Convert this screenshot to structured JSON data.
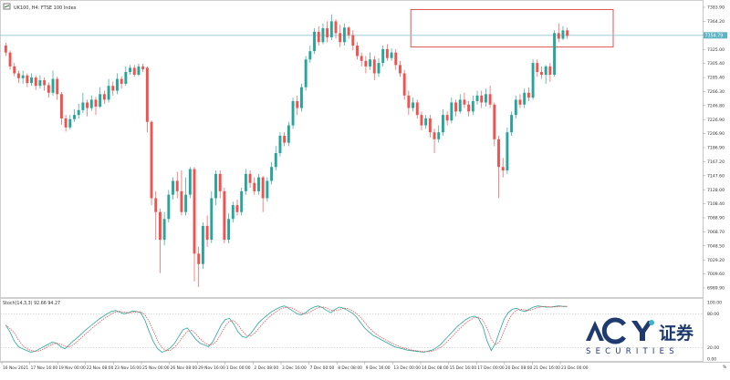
{
  "header": {
    "title": "UK100, H4: FTSE 100 Index",
    "icon": "chart-window-icon"
  },
  "stoch_header": "Stoch(14,3,3) 92.66 94.27",
  "price_badge": "7354.79",
  "chart_data": {
    "type": "candlestick",
    "title": "UK100, H4: FTSE 100 Index",
    "grid": false,
    "ylim": [
      6980,
      7390
    ],
    "price_ticks": [
      "7383.90",
      "7364.20",
      "7344.50",
      "7325.00",
      "7305.40",
      "7285.40",
      "7266.30",
      "7246.80",
      "7226.90",
      "7206.90",
      "7186.90",
      "7167.20",
      "7147.60",
      "7128.00",
      "7108.40",
      "7088.90",
      "7068.70",
      "7048.50",
      "7029.20",
      "7009.60",
      "6989.90"
    ],
    "x_labels": [
      "16 Nov 2021",
      "17 Nov 16:00",
      "19 Nov 00:00",
      "22 Nov 08:00",
      "23 Nov 16:00",
      "25 Nov 00:00",
      "26 Nov 08:00",
      "29 Nov 16:00",
      "1 Dec 00:00",
      "2 Dec 08:00",
      "3 Dec 16:00",
      "7 Dec 00:00",
      "8 Dec 08:00",
      "9 Dec 16:00",
      "13 Dec 00:00",
      "14 Dec 08:00",
      "15 Dec 16:00",
      "17 Dec 00:00",
      "20 Dec 08:00",
      "21 Dec 16:00",
      "23 Dec 00:00"
    ],
    "current_price": 7354.79,
    "resistance_zone": [
      7338,
      7392
    ],
    "candles": [
      {
        "o": 7340,
        "c": 7330,
        "h": 7344,
        "l": 7325
      },
      {
        "o": 7330,
        "c": 7310,
        "h": 7333,
        "l": 7305
      },
      {
        "o": 7310,
        "c": 7300,
        "h": 7315,
        "l": 7296
      },
      {
        "o": 7300,
        "c": 7293,
        "h": 7304,
        "l": 7286
      },
      {
        "o": 7293,
        "c": 7297,
        "h": 7304,
        "l": 7285
      },
      {
        "o": 7297,
        "c": 7286,
        "h": 7300,
        "l": 7280
      },
      {
        "o": 7286,
        "c": 7294,
        "h": 7300,
        "l": 7282
      },
      {
        "o": 7294,
        "c": 7282,
        "h": 7297,
        "l": 7276
      },
      {
        "o": 7282,
        "c": 7290,
        "h": 7297,
        "l": 7278
      },
      {
        "o": 7290,
        "c": 7283,
        "h": 7294,
        "l": 7275
      },
      {
        "o": 7283,
        "c": 7272,
        "h": 7287,
        "l": 7265
      },
      {
        "o": 7272,
        "c": 7292,
        "h": 7304,
        "l": 7268
      },
      {
        "o": 7292,
        "c": 7270,
        "h": 7295,
        "l": 7262
      },
      {
        "o": 7270,
        "c": 7235,
        "h": 7273,
        "l": 7226
      },
      {
        "o": 7235,
        "c": 7222,
        "h": 7240,
        "l": 7216
      },
      {
        "o": 7222,
        "c": 7234,
        "h": 7240,
        "l": 7219
      },
      {
        "o": 7234,
        "c": 7240,
        "h": 7248,
        "l": 7230
      },
      {
        "o": 7240,
        "c": 7247,
        "h": 7256,
        "l": 7235
      },
      {
        "o": 7247,
        "c": 7258,
        "h": 7272,
        "l": 7243
      },
      {
        "o": 7258,
        "c": 7250,
        "h": 7262,
        "l": 7238
      },
      {
        "o": 7250,
        "c": 7262,
        "h": 7268,
        "l": 7246
      },
      {
        "o": 7262,
        "c": 7252,
        "h": 7266,
        "l": 7240
      },
      {
        "o": 7252,
        "c": 7270,
        "h": 7280,
        "l": 7250
      },
      {
        "o": 7270,
        "c": 7262,
        "h": 7275,
        "l": 7256
      },
      {
        "o": 7262,
        "c": 7282,
        "h": 7292,
        "l": 7258
      },
      {
        "o": 7282,
        "c": 7275,
        "h": 7288,
        "l": 7268
      },
      {
        "o": 7275,
        "c": 7292,
        "h": 7300,
        "l": 7270
      },
      {
        "o": 7292,
        "c": 7285,
        "h": 7296,
        "l": 7278
      },
      {
        "o": 7285,
        "c": 7302,
        "h": 7310,
        "l": 7282
      },
      {
        "o": 7302,
        "c": 7308,
        "h": 7312,
        "l": 7298
      },
      {
        "o": 7308,
        "c": 7298,
        "h": 7312,
        "l": 7295
      },
      {
        "o": 7298,
        "c": 7310,
        "h": 7314,
        "l": 7296
      },
      {
        "o": 7310,
        "c": 7306,
        "h": 7314,
        "l": 7302
      },
      {
        "o": 7308,
        "c": 7230,
        "h": 7310,
        "l": 7215
      },
      {
        "o": 7230,
        "c": 7120,
        "h": 7232,
        "l": 7110
      },
      {
        "o": 7120,
        "c": 7100,
        "h": 7130,
        "l": 7060
      },
      {
        "o": 7100,
        "c": 7060,
        "h": 7105,
        "l": 7012
      },
      {
        "o": 7060,
        "c": 7090,
        "h": 7100,
        "l": 7052
      },
      {
        "o": 7090,
        "c": 7125,
        "h": 7132,
        "l": 7085
      },
      {
        "o": 7125,
        "c": 7145,
        "h": 7150,
        "l": 7118
      },
      {
        "o": 7145,
        "c": 7130,
        "h": 7158,
        "l": 7120
      },
      {
        "o": 7130,
        "c": 7100,
        "h": 7160,
        "l": 7095
      },
      {
        "o": 7100,
        "c": 7125,
        "h": 7150,
        "l": 7095
      },
      {
        "o": 7125,
        "c": 7162,
        "h": 7165,
        "l": 7120
      },
      {
        "o": 7162,
        "c": 7040,
        "h": 7165,
        "l": 7000
      },
      {
        "o": 7040,
        "c": 7025,
        "h": 7050,
        "l": 6992
      },
      {
        "o": 7025,
        "c": 7080,
        "h": 7085,
        "l": 7018
      },
      {
        "o": 7080,
        "c": 7060,
        "h": 7095,
        "l": 7050
      },
      {
        "o": 7060,
        "c": 7120,
        "h": 7130,
        "l": 7055
      },
      {
        "o": 7120,
        "c": 7155,
        "h": 7160,
        "l": 7110
      },
      {
        "o": 7155,
        "c": 7130,
        "h": 7160,
        "l": 7120
      },
      {
        "o": 7130,
        "c": 7060,
        "h": 7135,
        "l": 7055
      },
      {
        "o": 7060,
        "c": 7090,
        "h": 7098,
        "l": 7055
      },
      {
        "o": 7090,
        "c": 7110,
        "h": 7115,
        "l": 7085
      },
      {
        "o": 7110,
        "c": 7100,
        "h": 7118,
        "l": 7095
      },
      {
        "o": 7100,
        "c": 7130,
        "h": 7135,
        "l": 7095
      },
      {
        "o": 7130,
        "c": 7155,
        "h": 7162,
        "l": 7125
      },
      {
        "o": 7155,
        "c": 7142,
        "h": 7160,
        "l": 7135
      },
      {
        "o": 7142,
        "c": 7130,
        "h": 7150,
        "l": 7125
      },
      {
        "o": 7130,
        "c": 7150,
        "h": 7155,
        "l": 7125
      },
      {
        "o": 7150,
        "c": 7120,
        "h": 7152,
        "l": 7100
      },
      {
        "o": 7120,
        "c": 7145,
        "h": 7150,
        "l": 7115
      },
      {
        "o": 7145,
        "c": 7165,
        "h": 7172,
        "l": 7140
      },
      {
        "o": 7165,
        "c": 7185,
        "h": 7195,
        "l": 7160
      },
      {
        "o": 7185,
        "c": 7210,
        "h": 7215,
        "l": 7180
      },
      {
        "o": 7210,
        "c": 7200,
        "h": 7215,
        "l": 7195
      },
      {
        "o": 7200,
        "c": 7225,
        "h": 7230,
        "l": 7195
      },
      {
        "o": 7225,
        "c": 7260,
        "h": 7265,
        "l": 7220
      },
      {
        "o": 7260,
        "c": 7250,
        "h": 7268,
        "l": 7240
      },
      {
        "o": 7250,
        "c": 7280,
        "h": 7285,
        "l": 7245
      },
      {
        "o": 7280,
        "c": 7320,
        "h": 7325,
        "l": 7275
      },
      {
        "o": 7320,
        "c": 7332,
        "h": 7340,
        "l": 7315
      },
      {
        "o": 7332,
        "c": 7360,
        "h": 7365,
        "l": 7328
      },
      {
        "o": 7360,
        "c": 7345,
        "h": 7368,
        "l": 7340
      },
      {
        "o": 7345,
        "c": 7365,
        "h": 7372,
        "l": 7342
      },
      {
        "o": 7365,
        "c": 7352,
        "h": 7375,
        "l": 7345
      },
      {
        "o": 7352,
        "c": 7375,
        "h": 7385,
        "l": 7348
      },
      {
        "o": 7375,
        "c": 7358,
        "h": 7378,
        "l": 7350
      },
      {
        "o": 7358,
        "c": 7345,
        "h": 7370,
        "l": 7338
      },
      {
        "o": 7345,
        "c": 7366,
        "h": 7372,
        "l": 7340
      },
      {
        "o": 7366,
        "c": 7355,
        "h": 7368,
        "l": 7350
      },
      {
        "o": 7355,
        "c": 7340,
        "h": 7362,
        "l": 7333
      },
      {
        "o": 7340,
        "c": 7325,
        "h": 7345,
        "l": 7320
      },
      {
        "o": 7325,
        "c": 7318,
        "h": 7330,
        "l": 7310
      },
      {
        "o": 7318,
        "c": 7310,
        "h": 7325,
        "l": 7300
      },
      {
        "o": 7310,
        "c": 7320,
        "h": 7330,
        "l": 7305
      },
      {
        "o": 7320,
        "c": 7300,
        "h": 7325,
        "l": 7290
      },
      {
        "o": 7300,
        "c": 7315,
        "h": 7322,
        "l": 7295
      },
      {
        "o": 7315,
        "c": 7335,
        "h": 7340,
        "l": 7310
      },
      {
        "o": 7335,
        "c": 7322,
        "h": 7342,
        "l": 7318
      },
      {
        "o": 7322,
        "c": 7330,
        "h": 7336,
        "l": 7318
      },
      {
        "o": 7330,
        "c": 7312,
        "h": 7335,
        "l": 7305
      },
      {
        "o": 7312,
        "c": 7300,
        "h": 7318,
        "l": 7295
      },
      {
        "o": 7300,
        "c": 7268,
        "h": 7305,
        "l": 7262
      },
      {
        "o": 7268,
        "c": 7250,
        "h": 7275,
        "l": 7240
      },
      {
        "o": 7250,
        "c": 7258,
        "h": 7265,
        "l": 7245
      },
      {
        "o": 7258,
        "c": 7240,
        "h": 7262,
        "l": 7235
      },
      {
        "o": 7240,
        "c": 7225,
        "h": 7245,
        "l": 7218
      },
      {
        "o": 7225,
        "c": 7235,
        "h": 7240,
        "l": 7220
      },
      {
        "o": 7235,
        "c": 7215,
        "h": 7240,
        "l": 7208
      },
      {
        "o": 7215,
        "c": 7205,
        "h": 7220,
        "l": 7185
      },
      {
        "o": 7205,
        "c": 7215,
        "h": 7225,
        "l": 7200
      },
      {
        "o": 7215,
        "c": 7240,
        "h": 7248,
        "l": 7210
      },
      {
        "o": 7240,
        "c": 7232,
        "h": 7245,
        "l": 7225
      },
      {
        "o": 7232,
        "c": 7258,
        "h": 7265,
        "l": 7228
      },
      {
        "o": 7258,
        "c": 7245,
        "h": 7262,
        "l": 7238
      },
      {
        "o": 7245,
        "c": 7262,
        "h": 7270,
        "l": 7242
      },
      {
        "o": 7262,
        "c": 7255,
        "h": 7272,
        "l": 7250
      },
      {
        "o": 7255,
        "c": 7245,
        "h": 7260,
        "l": 7238
      },
      {
        "o": 7245,
        "c": 7260,
        "h": 7268,
        "l": 7240
      },
      {
        "o": 7260,
        "c": 7268,
        "h": 7275,
        "l": 7255
      },
      {
        "o": 7268,
        "c": 7258,
        "h": 7275,
        "l": 7250
      },
      {
        "o": 7258,
        "c": 7270,
        "h": 7278,
        "l": 7252
      },
      {
        "o": 7270,
        "c": 7255,
        "h": 7282,
        "l": 7250
      },
      {
        "o": 7255,
        "c": 7205,
        "h": 7258,
        "l": 7195
      },
      {
        "o": 7205,
        "c": 7165,
        "h": 7210,
        "l": 7120
      },
      {
        "o": 7165,
        "c": 7160,
        "h": 7178,
        "l": 7150
      },
      {
        "o": 7160,
        "c": 7215,
        "h": 7222,
        "l": 7155
      },
      {
        "o": 7215,
        "c": 7240,
        "h": 7245,
        "l": 7210
      },
      {
        "o": 7240,
        "c": 7262,
        "h": 7268,
        "l": 7235
      },
      {
        "o": 7262,
        "c": 7255,
        "h": 7270,
        "l": 7250
      },
      {
        "o": 7255,
        "c": 7272,
        "h": 7278,
        "l": 7250
      },
      {
        "o": 7272,
        "c": 7265,
        "h": 7280,
        "l": 7260
      },
      {
        "o": 7265,
        "c": 7315,
        "h": 7320,
        "l": 7262
      },
      {
        "o": 7315,
        "c": 7302,
        "h": 7320,
        "l": 7295
      },
      {
        "o": 7302,
        "c": 7298,
        "h": 7310,
        "l": 7292
      },
      {
        "o": 7298,
        "c": 7310,
        "h": 7312,
        "l": 7285
      },
      {
        "o": 7310,
        "c": 7298,
        "h": 7315,
        "l": 7288
      },
      {
        "o": 7298,
        "c": 7358,
        "h": 7362,
        "l": 7295
      },
      {
        "o": 7358,
        "c": 7350,
        "h": 7372,
        "l": 7345
      },
      {
        "o": 7350,
        "c": 7362,
        "h": 7368,
        "l": 7348
      },
      {
        "o": 7362,
        "c": 7354,
        "h": 7366,
        "l": 7350
      }
    ],
    "stoch": {
      "ylim": [
        0,
        100
      ],
      "levels": [
        80,
        20
      ],
      "ticks": [
        "100.00",
        "80.00",
        "20.00",
        "0.00"
      ],
      "main": [
        60,
        48,
        32,
        22,
        18,
        15,
        12,
        14,
        18,
        22,
        26,
        30,
        28,
        22,
        18,
        25,
        32,
        38,
        45,
        52,
        58,
        64,
        70,
        75,
        80,
        84,
        86,
        83,
        80,
        82,
        85,
        84,
        82,
        68,
        48,
        30,
        18,
        12,
        15,
        20,
        28,
        40,
        52,
        55,
        45,
        35,
        28,
        25,
        22,
        30,
        45,
        60,
        70,
        72,
        62,
        48,
        40,
        38,
        45,
        55,
        65,
        72,
        78,
        84,
        88,
        92,
        94,
        90,
        85,
        80,
        78,
        82,
        88,
        92,
        94,
        91,
        86,
        82,
        88,
        92,
        90,
        86,
        82,
        75,
        65,
        55,
        48,
        42,
        38,
        34,
        30,
        26,
        22,
        20,
        18,
        16,
        15,
        14,
        13,
        12,
        14,
        16,
        20,
        26,
        34,
        42,
        50,
        58,
        64,
        70,
        74,
        76,
        72,
        58,
        32,
        15,
        28,
        50,
        70,
        82,
        88,
        90,
        86,
        84,
        88,
        92,
        94,
        93,
        92,
        92,
        93,
        94,
        93,
        93
      ]
    }
  },
  "watermark": {
    "brand": "ACY",
    "chinese": "证券",
    "sub": "SECURITIES"
  },
  "colors": {
    "bull": "#26a69a",
    "bear": "#ef5350",
    "badge": "#5fb4c4",
    "zone": "#e05555",
    "stoch_main": "#26a69a",
    "stoch_signal": "#e05555"
  }
}
